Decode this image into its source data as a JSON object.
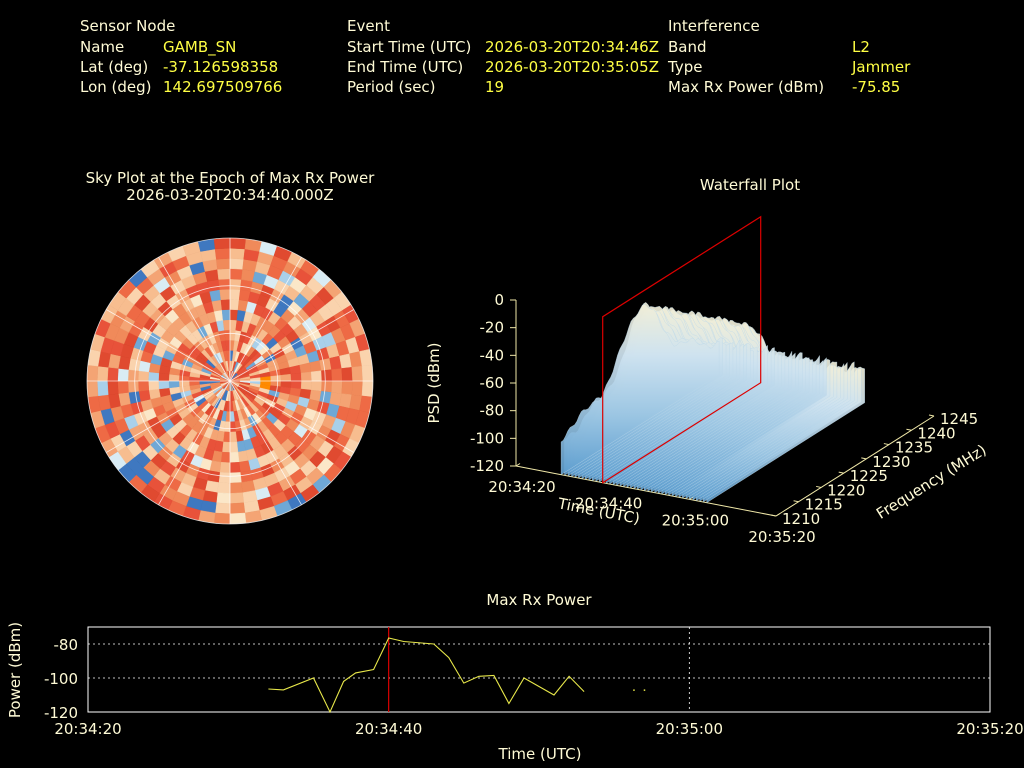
{
  "header": {
    "sensor": {
      "heading": "Sensor Node",
      "rows": [
        {
          "label": "Name",
          "value": "GAMB_SN"
        },
        {
          "label": "Lat (deg)",
          "value": "-37.126598358"
        },
        {
          "label": "Lon (deg)",
          "value": "142.697509766"
        }
      ]
    },
    "event": {
      "heading": "Event",
      "rows": [
        {
          "label": "Start Time (UTC)",
          "value": "2026-03-20T20:34:46Z"
        },
        {
          "label": "End Time (UTC)",
          "value": "2026-03-20T20:35:05Z"
        },
        {
          "label": "Period (sec)",
          "value": "19"
        }
      ]
    },
    "interference": {
      "heading": "Interference",
      "rows": [
        {
          "label": "Band",
          "value": "L2"
        },
        {
          "label": "Type",
          "value": "Jammer"
        },
        {
          "label": "Max Rx Power (dBm)",
          "value": "-75.85"
        }
      ]
    }
  },
  "skyplot": {
    "title": "Sky Plot at the Epoch of Max Rx Power",
    "subtitle": "2026-03-20T20:34:40.000Z"
  },
  "waterfall": {
    "title": "Waterfall Plot",
    "zlabel": "PSD (dBm)",
    "xlabel": "Time (UTC)",
    "ylabel": "Frequency (MHz)"
  },
  "colors": {
    "background": "#000000",
    "text": "#fffbd6",
    "value": "#ffff44",
    "line": "#e8e84a",
    "marker": "#dd0000",
    "grid": "#ffffff"
  },
  "chart_data": [
    {
      "type": "heatmap",
      "name": "skyplot",
      "title": "Sky Plot at the Epoch of Max Rx Power",
      "subtitle": "2026-03-20T20:34:40.000Z",
      "projection": "polar",
      "grid": true
    },
    {
      "type": "area",
      "name": "waterfall",
      "title": "Waterfall Plot",
      "zlabel": "PSD (dBm)",
      "xlabel": "Time (UTC)",
      "ylabel": "Frequency (MHz)",
      "z_ticks": [
        "0",
        "-20",
        "-40",
        "-60",
        "-80",
        "-100",
        "-120"
      ],
      "x_ticks": [
        "20:34:20",
        "20:34:40",
        "20:35:00",
        "20:35:20"
      ],
      "y_ticks": [
        "1210",
        "1215",
        "1220",
        "1225",
        "1230",
        "1235",
        "1240",
        "1245"
      ],
      "zlim": [
        -120,
        0
      ],
      "ylim": [
        1210,
        1245
      ],
      "marker_time": "20:34:40"
    },
    {
      "type": "line",
      "name": "maxrx",
      "title": "Max Rx Power",
      "xlabel": "Time (UTC)",
      "ylabel": "Power (dBm)",
      "x_ticks": [
        "20:34:20",
        "20:34:40",
        "20:35:00",
        "20:35:20"
      ],
      "y_ticks": [
        "-80",
        "-100",
        "-120"
      ],
      "xlim": [
        0,
        60
      ],
      "ylim": [
        -120,
        -70
      ],
      "grid": true,
      "marker_x": 20,
      "x": [
        12,
        13,
        15,
        16.1,
        17,
        17.8,
        19,
        20,
        21,
        23,
        24,
        25,
        26,
        27,
        28,
        29,
        30,
        31,
        32,
        33,
        34,
        35,
        35.3,
        35.5,
        35.7,
        36.3,
        36.5,
        37
      ],
      "y": [
        -106.5,
        -107,
        -100,
        -120,
        -102,
        -97,
        -95,
        -76.5,
        -78.5,
        -80,
        -88,
        -103,
        -99,
        -98.5,
        -115,
        -100,
        -105,
        -110,
        -99,
        -108,
        null,
        null,
        null,
        null,
        null,
        -107,
        null,
        -107
      ]
    }
  ]
}
